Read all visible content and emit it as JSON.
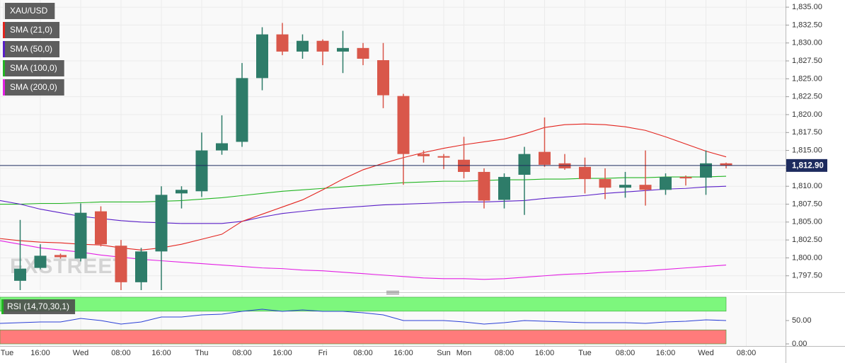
{
  "chart_data": [
    {
      "type": "candlestick",
      "title": "XAU/USD",
      "watermark": "FXSTREET",
      "categories": [
        "Tue",
        null,
        "16:00",
        null,
        "Wed",
        null,
        "08:00",
        null,
        "16:00",
        null,
        "Thu",
        null,
        "08:00",
        null,
        "16:00",
        null,
        "Fri",
        null,
        "08:00",
        null,
        "16:00",
        null,
        "Sun",
        "Mon",
        null,
        "08:00",
        null,
        "16:00",
        null,
        "Tue",
        null,
        "08:00",
        null,
        "16:00",
        null,
        "Wed",
        null,
        "08:00"
      ],
      "open": [
        null,
        1796.8,
        1798.6,
        1800.4,
        1799.9,
        1806.5,
        1801.7,
        1796.6,
        1800.9,
        1809.0,
        1809.3,
        1815.0,
        1816.2,
        1825.1,
        1831.2,
        1828.8,
        1830.3,
        1828.8,
        1829.3,
        1827.6,
        1822.6,
        1814.5,
        1814.2,
        1813.7,
        1812.0,
        1808.1,
        1811.6,
        1814.8,
        1813.2,
        1812.7,
        1811.0,
        1809.8,
        1810.2,
        1809.5,
        1811.3,
        1811.2,
        1813.2,
        null
      ],
      "high": [
        null,
        1805.3,
        1801.9,
        1800.6,
        1807.6,
        1807.2,
        1802.5,
        1801.4,
        1810.0,
        1810.0,
        1817.5,
        1819.9,
        1827.2,
        1832.2,
        1832.8,
        1831.2,
        1830.5,
        1831.7,
        1830.0,
        1830.0,
        1822.9,
        1815.0,
        1814.5,
        1816.9,
        1812.5,
        1811.8,
        1815.5,
        1819.6,
        1814.5,
        1814.0,
        1812.5,
        1812.0,
        1815.0,
        1811.8,
        1811.5,
        1815.0,
        1813.3,
        null
      ],
      "low": [
        null,
        1795.5,
        1798.4,
        1799.9,
        1799.5,
        1801.6,
        1795.5,
        1795.5,
        1795.5,
        1806.9,
        1808.5,
        1814.4,
        1815.5,
        1823.4,
        1828.3,
        1827.8,
        1826.9,
        1825.8,
        1826.9,
        1820.9,
        1810.2,
        1813.3,
        1812.4,
        1811.1,
        1806.9,
        1806.9,
        1806.0,
        1812.7,
        1812.3,
        1809.0,
        1808.2,
        1808.4,
        1807.3,
        1808.8,
        1810.1,
        1808.8,
        1812.5,
        null
      ],
      "close": [
        null,
        1798.5,
        1800.3,
        1800.1,
        1806.3,
        1801.9,
        1796.6,
        1800.9,
        1808.8,
        1809.5,
        1815.0,
        1816.0,
        1825.1,
        1831.2,
        1828.8,
        1830.3,
        1828.8,
        1829.3,
        1827.8,
        1822.7,
        1814.5,
        1814.2,
        1814.0,
        1812.0,
        1808.0,
        1811.3,
        1814.5,
        1813.0,
        1812.5,
        1811.0,
        1809.8,
        1810.2,
        1809.5,
        1811.3,
        1811.1,
        1813.2,
        1812.9,
        null
      ],
      "up_color": "#2e7c69",
      "down_color": "#d9574a",
      "series": [
        {
          "name": "SMA (21,0)",
          "color": "#e3241e",
          "values": [
            1802.7,
            1802.4,
            1802.2,
            1802.1,
            1801.9,
            1801.8,
            1801.4,
            1801.1,
            1801.4,
            1801.9,
            1802.6,
            1803.3,
            1805.1,
            1806.1,
            1807.1,
            1808.1,
            1809.5,
            1811.0,
            1812.3,
            1813.2,
            1814.0,
            1814.7,
            1815.3,
            1815.8,
            1816.2,
            1816.6,
            1817.3,
            1818.2,
            1818.6,
            1818.7,
            1818.6,
            1818.3,
            1817.8,
            1816.9,
            1815.9,
            1814.9,
            1814.1,
            null
          ]
        },
        {
          "name": "SMA (50,0)",
          "color": "#5a1fc8",
          "values": [
            1808.0,
            1807.5,
            1806.8,
            1806.3,
            1805.8,
            1805.5,
            1805.2,
            1805.0,
            1804.9,
            1804.8,
            1804.8,
            1804.8,
            1805.1,
            1805.7,
            1806.2,
            1806.5,
            1806.8,
            1807.0,
            1807.2,
            1807.4,
            1807.5,
            1807.6,
            1807.7,
            1807.8,
            1807.8,
            1807.9,
            1808.0,
            1808.3,
            1808.5,
            1808.7,
            1809.0,
            1809.2,
            1809.4,
            1809.6,
            1809.7,
            1809.9,
            1810.0,
            null
          ]
        },
        {
          "name": "SMA (100,0)",
          "color": "#22b522",
          "values": [
            1807.5,
            1807.5,
            1807.6,
            1807.6,
            1807.7,
            1807.8,
            1807.8,
            1807.8,
            1807.9,
            1808.0,
            1808.2,
            1808.4,
            1808.7,
            1809.0,
            1809.3,
            1809.5,
            1809.7,
            1809.9,
            1810.1,
            1810.3,
            1810.5,
            1810.6,
            1810.7,
            1810.7,
            1810.8,
            1810.9,
            1810.9,
            1811.0,
            1811.0,
            1811.1,
            1811.1,
            1811.2,
            1811.2,
            1811.3,
            1811.3,
            1811.3,
            1811.4,
            null
          ]
        },
        {
          "name": "SMA (200,0)",
          "color": "#e31fe3",
          "values": [
            1802.4,
            1801.9,
            1801.4,
            1801.1,
            1800.8,
            1800.4,
            1800.1,
            1799.8,
            1799.6,
            1799.4,
            1799.2,
            1799.0,
            1798.8,
            1798.6,
            1798.5,
            1798.3,
            1798.2,
            1798.0,
            1797.8,
            1797.6,
            1797.4,
            1797.2,
            1797.1,
            1797.1,
            1797.0,
            1797.1,
            1797.3,
            1797.5,
            1797.7,
            1797.8,
            1798.0,
            1798.1,
            1798.2,
            1798.4,
            1798.6,
            1798.8,
            1799.0,
            null
          ]
        }
      ],
      "ylim": [
        1795.5,
        1836
      ],
      "yticks": [
        {
          "value": 1797.5,
          "label": "1,797.50"
        },
        {
          "value": 1800,
          "label": "1,800.00"
        },
        {
          "value": 1802.5,
          "label": "1,802.50"
        },
        {
          "value": 1805,
          "label": "1,805.00"
        },
        {
          "value": 1807.5,
          "label": "1,807.50"
        },
        {
          "value": 1810,
          "label": "1,810.00"
        },
        {
          "value": 1812.5,
          "label": "1,812.50"
        },
        {
          "value": 1815,
          "label": "1,815.00"
        },
        {
          "value": 1817.5,
          "label": "1,817.50"
        },
        {
          "value": 1820,
          "label": "1,820.00"
        },
        {
          "value": 1822.5,
          "label": "1,822.50"
        },
        {
          "value": 1825,
          "label": "1,825.00"
        },
        {
          "value": 1827.5,
          "label": "1,827.50"
        },
        {
          "value": 1830,
          "label": "1,830.00"
        },
        {
          "value": 1832.5,
          "label": "1,832.50"
        },
        {
          "value": 1835,
          "label": "1,835.00"
        }
      ],
      "last_price": {
        "value": 1812.9,
        "label": "1,812.90"
      },
      "last_price_color": "#1d2b5e",
      "grid": true
    },
    {
      "type": "line",
      "series": [
        {
          "name": "RSI (14,70,30,1)",
          "color": "#2a3fd6",
          "values": [
            43.9,
            45.5,
            47.0,
            47.0,
            54.5,
            50.0,
            42.4,
            47.0,
            57.6,
            57.6,
            62.1,
            63.6,
            69.7,
            74.2,
            69.7,
            72.7,
            69.7,
            69.7,
            66.7,
            62.1,
            50.0,
            50.0,
            50.0,
            47.0,
            42.4,
            45.5,
            50.0,
            48.5,
            47.0,
            45.5,
            45.5,
            45.5,
            43.9,
            47.0,
            48.5,
            51.5,
            50.0,
            null
          ]
        }
      ],
      "ylim": [
        0,
        100
      ],
      "yticks": [
        {
          "value": 0,
          "label": "0.00"
        },
        {
          "value": 50,
          "label": "50.00"
        }
      ],
      "bands": [
        {
          "from": 70,
          "to": 100,
          "color": "#7df77d"
        },
        {
          "from": 0,
          "to": 30,
          "color": "#ff7b7b"
        }
      ]
    }
  ]
}
